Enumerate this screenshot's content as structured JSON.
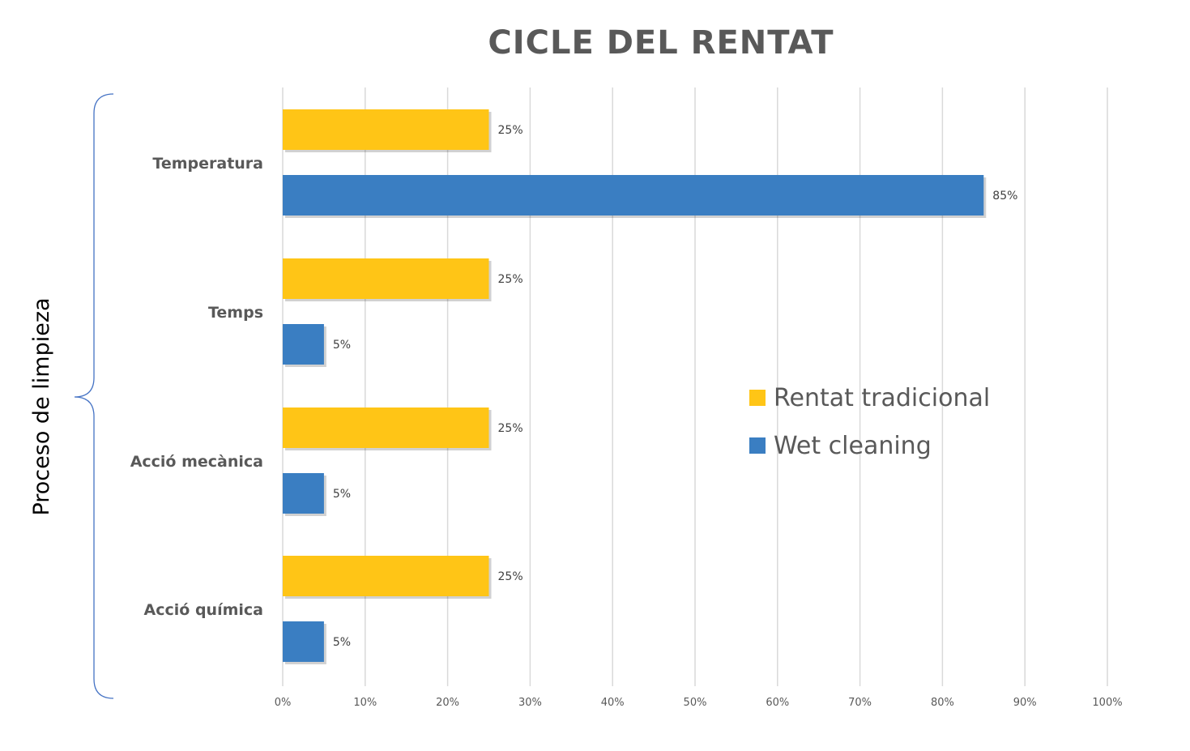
{
  "chart_data": {
    "type": "bar",
    "orientation": "horizontal",
    "title": "CICLE DEL RENTAT",
    "ylabel": "Proceso de limpieza",
    "xlabel": "",
    "categories": [
      "Temperatura",
      "Temps",
      "Acció mecànica",
      "Acció química"
    ],
    "series": [
      {
        "name": "Rentat tradicional",
        "color": "#FFC516",
        "values": [
          25,
          25,
          25,
          25
        ],
        "labels": [
          "25%",
          "25%",
          "25%",
          "25%"
        ]
      },
      {
        "name": "Wet cleaning",
        "color": "#3A7EC2",
        "values": [
          85,
          5,
          5,
          5
        ],
        "labels": [
          "85%",
          "5%",
          "5%",
          "5%"
        ]
      }
    ],
    "xlim": [
      0,
      100
    ],
    "xticks": [
      "0%",
      "10%",
      "20%",
      "30%",
      "40%",
      "50%",
      "60%",
      "70%",
      "80%",
      "90%",
      "100%"
    ],
    "grid": true,
    "legend_position": "right"
  }
}
